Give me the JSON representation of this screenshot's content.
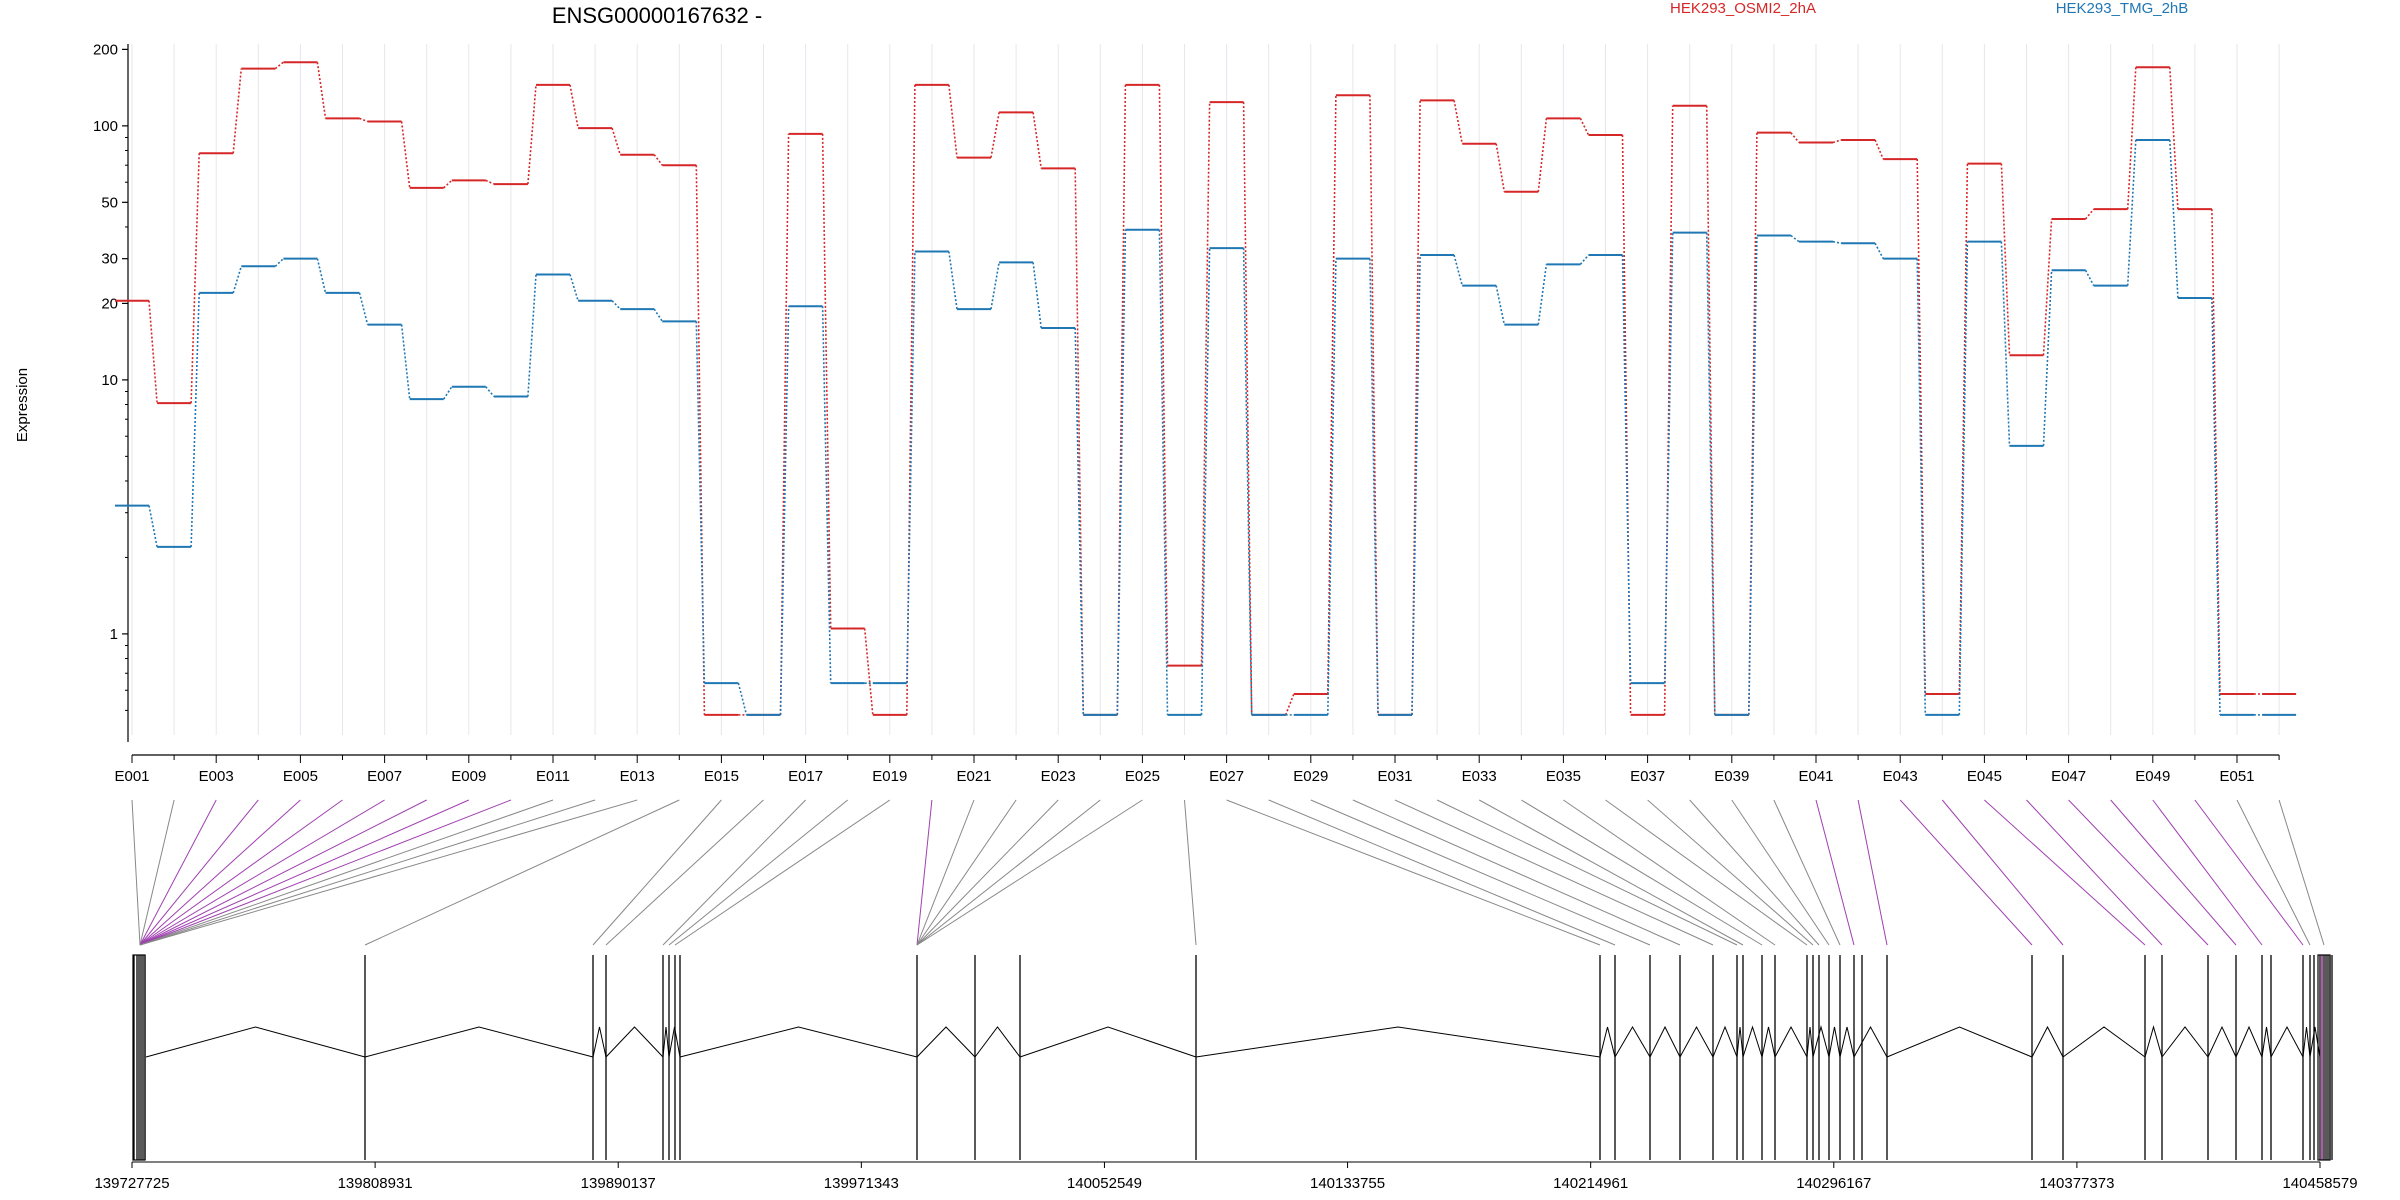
{
  "chart_data": {
    "type": "line",
    "title": "ENSG00000167632 -",
    "ylabel": "Expression",
    "xlabel": "",
    "y_scale": "log",
    "ylim": [
      0.4,
      210
    ],
    "y_ticks": [
      1,
      10,
      20,
      30,
      50,
      100,
      200
    ],
    "y_tick_labels": [
      "1",
      "10",
      "20",
      "30",
      "50",
      "100",
      "200"
    ],
    "legend_placement": "top-right",
    "categories": [
      "E001",
      "E002",
      "E003",
      "E004",
      "E005",
      "E006",
      "E007",
      "E008",
      "E009",
      "E010",
      "E011",
      "E012",
      "E013",
      "E014",
      "E015",
      "E016",
      "E017",
      "E018",
      "E019",
      "E020",
      "E021",
      "E022",
      "E023",
      "E024",
      "E025",
      "E026",
      "E027",
      "E028",
      "E029",
      "E030",
      "E031",
      "E032",
      "E033",
      "E034",
      "E035",
      "E036",
      "E037",
      "E038",
      "E039",
      "E040",
      "E041",
      "E042",
      "E043",
      "E044",
      "E045",
      "E046",
      "E047",
      "E048",
      "E049",
      "E050",
      "E051",
      "E052"
    ],
    "x_tick_labels": [
      "E001",
      "E003",
      "E005",
      "E007",
      "E009",
      "E011",
      "E013",
      "E015",
      "E017",
      "E019",
      "E021",
      "E023",
      "E025",
      "E027",
      "E029",
      "E031",
      "E033",
      "E035",
      "E037",
      "E039",
      "E041",
      "E043",
      "E045",
      "E047",
      "E049",
      "E051"
    ],
    "series": [
      {
        "name": "HEK293_OSMI2_2hA",
        "color": "#d62728",
        "values": [
          20.5,
          8.1,
          78,
          168,
          178,
          107,
          104,
          57,
          61,
          59,
          145,
          98,
          77,
          70,
          0.48,
          0.48,
          93,
          1.05,
          0.48,
          145,
          75,
          113,
          68,
          0.48,
          145,
          0.75,
          124,
          0.48,
          0.58,
          132,
          0.48,
          126,
          85,
          55,
          107,
          92,
          0.48,
          120,
          0.48,
          94,
          86,
          88,
          74,
          0.58,
          71,
          12.5,
          43,
          47,
          170,
          47,
          0.58,
          0.58
        ]
      },
      {
        "name": "HEK293_TMG_2hB",
        "color": "#1f77b4",
        "values": [
          3.2,
          2.2,
          22,
          28,
          30,
          22,
          16.5,
          8.4,
          9.4,
          8.6,
          26,
          20.5,
          19,
          17,
          0.64,
          0.48,
          19.5,
          0.64,
          0.64,
          32,
          19,
          29,
          16,
          0.48,
          39,
          0.48,
          33,
          0.48,
          0.48,
          30,
          0.48,
          31,
          23.5,
          16.5,
          28.5,
          31,
          0.64,
          38,
          0.48,
          37,
          35,
          34.5,
          30,
          0.48,
          35,
          5.5,
          27,
          23.5,
          88,
          21,
          0.48,
          0.48
        ]
      }
    ],
    "genomic_axis": {
      "ticks": [
        "139727725",
        "139808931",
        "139890137",
        "139971343",
        "140052549",
        "140133755",
        "140214961",
        "140296167",
        "140377373",
        "140458579"
      ]
    }
  }
}
